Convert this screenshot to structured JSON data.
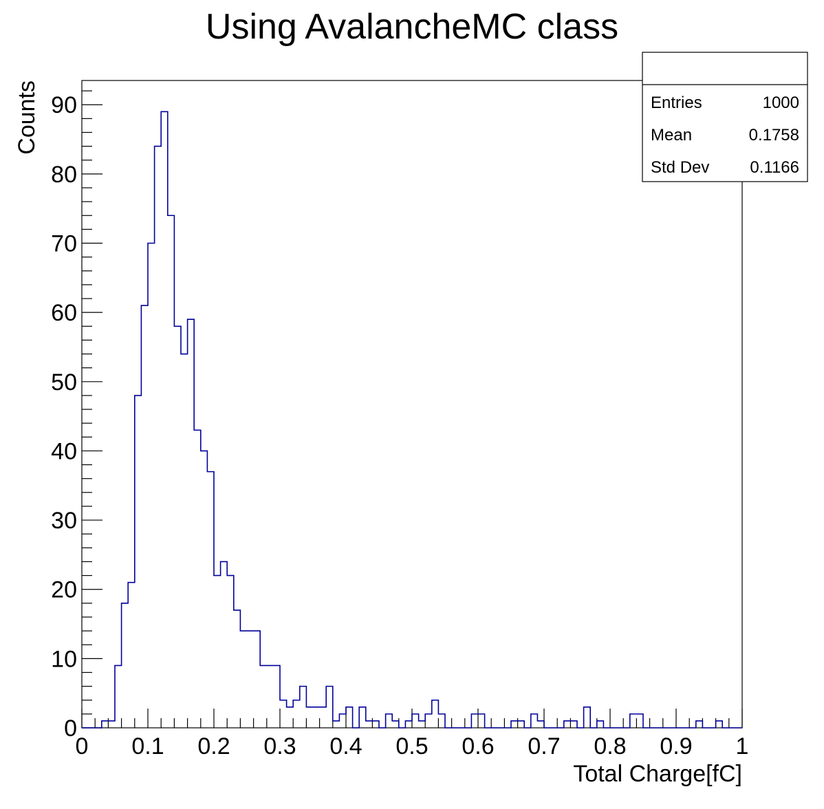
{
  "chart_data": {
    "type": "bar",
    "style": "step-histogram",
    "title": "Using AvalancheMC class",
    "xlabel": "Total Charge[fC]",
    "ylabel": "Counts",
    "xlim": [
      0,
      1
    ],
    "ylim": [
      0,
      93.5
    ],
    "bin_width": 0.01,
    "x_ticks": [
      "0",
      "0.1",
      "0.2",
      "0.3",
      "0.4",
      "0.5",
      "0.6",
      "0.7",
      "0.8",
      "0.9",
      "1"
    ],
    "y_ticks": [
      "0",
      "10",
      "20",
      "30",
      "40",
      "50",
      "60",
      "70",
      "80",
      "90"
    ],
    "line_color": "#000099",
    "grid": false,
    "counts": [
      0,
      0,
      0,
      1,
      1,
      9,
      18,
      21,
      48,
      61,
      70,
      84,
      89,
      74,
      58,
      54,
      59,
      43,
      40,
      37,
      22,
      24,
      22,
      17,
      14,
      14,
      14,
      9,
      9,
      9,
      4,
      3,
      4,
      6,
      3,
      3,
      3,
      6,
      1,
      2,
      3,
      0,
      3,
      1,
      1,
      0,
      2,
      1,
      0,
      1,
      2,
      1,
      2,
      4,
      2,
      0,
      0,
      0,
      0,
      2,
      2,
      0,
      0,
      0,
      0,
      1,
      1,
      0,
      2,
      1,
      0,
      0,
      0,
      1,
      1,
      0,
      3,
      0,
      1,
      0,
      0,
      0,
      0,
      2,
      2,
      0,
      0,
      0,
      0,
      0,
      0,
      0,
      0,
      1,
      0,
      0,
      1,
      0,
      0,
      0
    ]
  },
  "stats_box": {
    "entries_label": "Entries",
    "entries_value": "1000",
    "mean_label": "Mean",
    "mean_value": "0.1758",
    "stddev_label": "Std Dev",
    "stddev_value": "0.1166"
  }
}
